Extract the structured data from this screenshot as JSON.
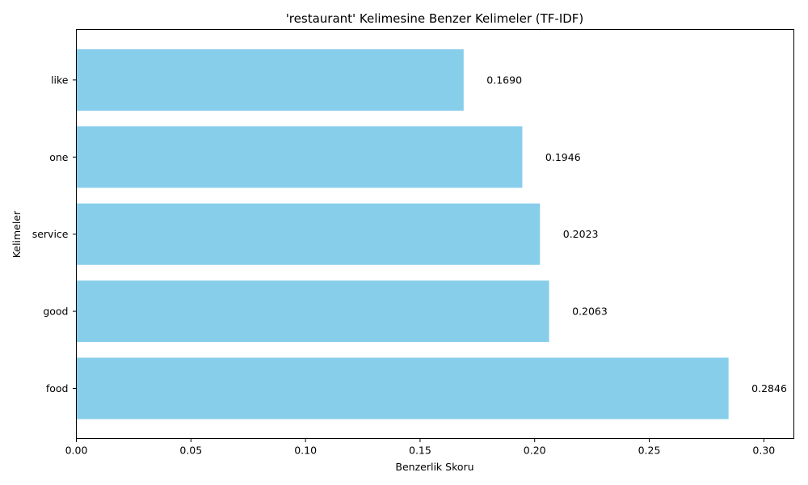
{
  "chart_data": {
    "type": "bar",
    "orientation": "horizontal",
    "title": "'restaurant' Kelimesine Benzer Kelimeler (TF-IDF)",
    "xlabel": "Benzerlik Skoru",
    "ylabel": "Kelimeler",
    "categories": [
      "food",
      "good",
      "service",
      "one",
      "like"
    ],
    "values": [
      0.2846,
      0.2063,
      0.2023,
      0.1946,
      0.169
    ],
    "value_labels": [
      "0.2846",
      "0.2063",
      "0.2023",
      "0.1946",
      "0.1690"
    ],
    "xlim": [
      0,
      0.3131
    ],
    "xticks": [
      0.0,
      0.05,
      0.1,
      0.15,
      0.2,
      0.25,
      0.3
    ],
    "xtick_labels": [
      "0.00",
      "0.05",
      "0.10",
      "0.15",
      "0.20",
      "0.25",
      "0.30"
    ],
    "bar_color": "#87ceeb",
    "grid": false,
    "legend": "none"
  }
}
